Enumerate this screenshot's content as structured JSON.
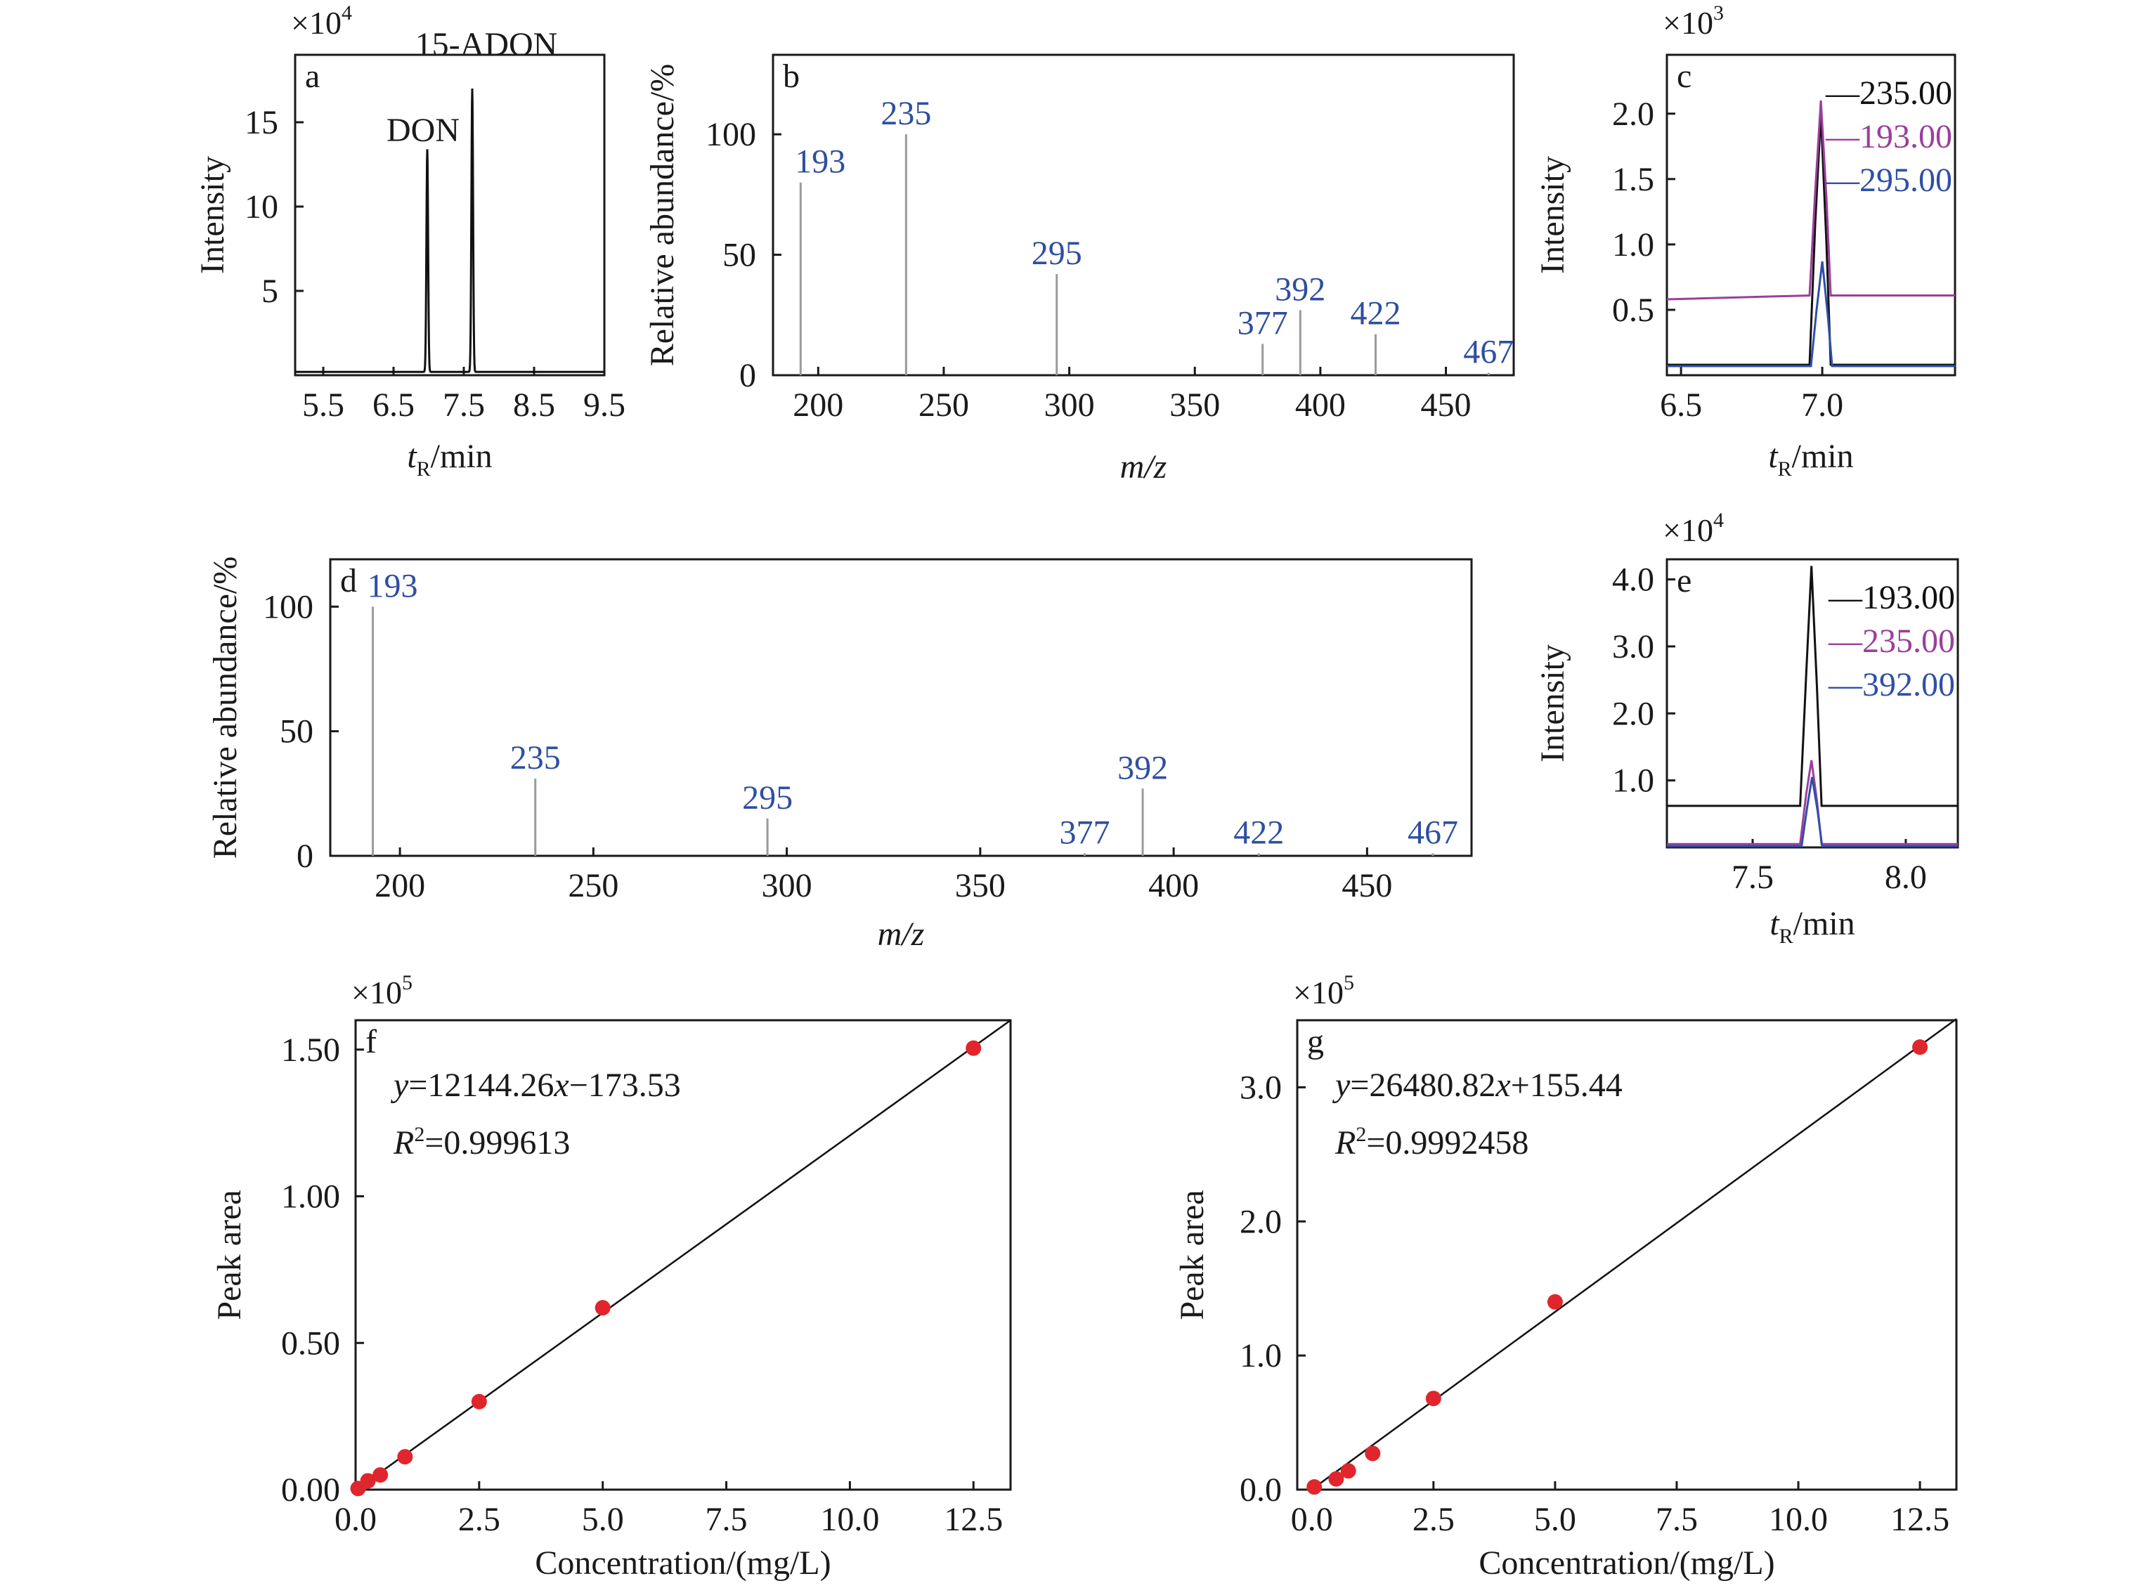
{
  "colors": {
    "axis": "#1a1a1a",
    "bar": "#9a9a9a",
    "label_blue": "#2e4fa0",
    "black_trace": "#111111",
    "magenta_trace": "#9b3f9b",
    "blue_trace": "#2f4fa8",
    "point_red": "#e0262c"
  },
  "chart_data": [
    {
      "id": "a",
      "panel_label": "a",
      "type": "line",
      "xlabel_main": "t",
      "xlabel_sub": "R",
      "xlabel_unit": "/min",
      "ylabel": "Intensity",
      "multiplier_base": "×10",
      "multiplier_exp": "4",
      "xlim": [
        5.1,
        9.5
      ],
      "ylim": [
        0,
        19
      ],
      "xticks": [
        5.5,
        6.5,
        7.5,
        8.5,
        9.5
      ],
      "xtick_labels": [
        "5.5",
        "6.5",
        "7.5",
        "8.5",
        "9.5"
      ],
      "yticks": [
        5,
        10,
        15
      ],
      "ytick_labels": [
        "5",
        "10",
        "15"
      ],
      "baseline": 0.2,
      "peaks": [
        {
          "name": "DON",
          "x": 6.98,
          "height": 13.2,
          "width": 0.025
        },
        {
          "name": "15-ADON",
          "x": 7.62,
          "height": 16.8,
          "width": 0.025
        }
      ],
      "annotations": [
        "DON",
        "15-ADON"
      ]
    },
    {
      "id": "b",
      "panel_label": "b",
      "type": "bar",
      "xlabel": "m/z",
      "ylabel": "Relative abundance/%",
      "xlim": [
        182,
        477
      ],
      "ylim": [
        0,
        133
      ],
      "xticks": [
        200,
        250,
        300,
        350,
        400,
        450
      ],
      "xtick_labels": [
        "200",
        "250",
        "300",
        "350",
        "400",
        "450"
      ],
      "yticks": [
        0,
        50,
        100
      ],
      "ytick_labels": [
        "0",
        "50",
        "100"
      ],
      "x": [
        193,
        235,
        295,
        377,
        392,
        422,
        467
      ],
      "values": [
        80,
        100,
        42,
        13,
        27,
        17,
        1
      ],
      "labels": [
        "193",
        "235",
        "295",
        "377",
        "392",
        "422",
        "467"
      ]
    },
    {
      "id": "c",
      "panel_label": "c",
      "type": "line",
      "xlabel_main": "t",
      "xlabel_sub": "R",
      "xlabel_unit": "/min",
      "ylabel": "Intensity",
      "multiplier_base": "×10",
      "multiplier_exp": "3",
      "xlim": [
        6.45,
        7.47
      ],
      "ylim": [
        0,
        2.45
      ],
      "xticks": [
        6.5,
        7.0
      ],
      "xtick_labels": [
        "6.5",
        "7.0"
      ],
      "yticks": [
        0.5,
        1.0,
        1.5,
        2.0
      ],
      "ytick_labels": [
        "0.5",
        "1.0",
        "1.5",
        "2.0"
      ],
      "series": [
        {
          "name": "—235.00",
          "color": "#111111",
          "x": [
            6.45,
            6.955,
            6.975,
            6.995,
            7.015,
            7.03,
            7.47
          ],
          "y": [
            0.08,
            0.08,
            1.15,
            2.0,
            1.0,
            0.08,
            0.08
          ]
        },
        {
          "name": "—193.00",
          "color": "#9b3f9b",
          "x": [
            6.45,
            6.955,
            6.975,
            6.995,
            7.015,
            7.03,
            7.47
          ],
          "y": [
            0.58,
            0.61,
            1.4,
            2.1,
            1.35,
            0.61,
            0.61
          ]
        },
        {
          "name": "—295.00",
          "color": "#2f4fa8",
          "x": [
            6.45,
            6.96,
            6.98,
            7.0,
            7.02,
            7.035,
            7.47
          ],
          "y": [
            0.07,
            0.07,
            0.5,
            0.87,
            0.45,
            0.07,
            0.07
          ]
        }
      ]
    },
    {
      "id": "d",
      "panel_label": "d",
      "type": "bar",
      "xlabel": "m/z",
      "ylabel": "Relative abundance/%",
      "xlim": [
        182,
        477
      ],
      "ylim": [
        0,
        119
      ],
      "xticks": [
        200,
        250,
        300,
        350,
        400,
        450
      ],
      "xtick_labels": [
        "200",
        "250",
        "300",
        "350",
        "400",
        "450"
      ],
      "yticks": [
        0,
        50,
        100
      ],
      "ytick_labels": [
        "0",
        "50",
        "100"
      ],
      "x": [
        193,
        235,
        295,
        377,
        392,
        422,
        467
      ],
      "values": [
        100,
        31,
        15,
        1,
        27,
        1,
        1
      ],
      "labels": [
        "193",
        "235",
        "295",
        "377",
        "392",
        "422",
        "467"
      ]
    },
    {
      "id": "e",
      "panel_label": "e",
      "type": "line",
      "xlabel_main": "t",
      "xlabel_sub": "R",
      "xlabel_unit": "/min",
      "ylabel": "Intensity",
      "multiplier_base": "×10",
      "multiplier_exp": "4",
      "xlim": [
        7.22,
        8.17
      ],
      "ylim": [
        0,
        4.3
      ],
      "xticks": [
        7.5,
        8.0
      ],
      "xtick_labels": [
        "7.5",
        "8.0"
      ],
      "yticks": [
        1.0,
        2.0,
        3.0,
        4.0
      ],
      "ytick_labels": [
        "1.0",
        "2.0",
        "3.0",
        "4.0"
      ],
      "series": [
        {
          "name": "—193.00",
          "color": "#111111",
          "x": [
            7.22,
            7.655,
            7.675,
            7.692,
            7.71,
            7.725,
            8.17
          ],
          "y": [
            0.62,
            0.62,
            2.6,
            4.2,
            2.4,
            0.62,
            0.62
          ]
        },
        {
          "name": "—235.00",
          "color": "#9b3f9b",
          "x": [
            7.22,
            7.655,
            7.675,
            7.692,
            7.71,
            7.725,
            8.17
          ],
          "y": [
            0.05,
            0.05,
            0.8,
            1.3,
            0.7,
            0.05,
            0.05
          ]
        },
        {
          "name": "—392.00",
          "color": "#2f4fa8",
          "x": [
            7.22,
            7.66,
            7.678,
            7.694,
            7.712,
            7.727,
            8.17
          ],
          "y": [
            0.02,
            0.02,
            0.6,
            1.05,
            0.55,
            0.02,
            0.02
          ]
        }
      ]
    },
    {
      "id": "f",
      "panel_label": "f",
      "type": "scatter",
      "xlabel": "Concentration/(mg/L)",
      "ylabel": "Peak area",
      "multiplier_base": "×10",
      "multiplier_exp": "5",
      "xlim": [
        0,
        13.25
      ],
      "ylim": [
        0,
        1.6
      ],
      "xticks": [
        0.0,
        2.5,
        5.0,
        7.5,
        10.0,
        12.5
      ],
      "xtick_labels": [
        "0.0",
        "2.5",
        "5.0",
        "7.5",
        "10.0",
        "12.5"
      ],
      "yticks": [
        0.0,
        0.5,
        1.0,
        1.5
      ],
      "ytick_labels": [
        "0.00",
        "0.50",
        "1.00",
        "1.50"
      ],
      "x": [
        0.05,
        0.25,
        0.5,
        1.0,
        2.5,
        5.0,
        12.5
      ],
      "y": [
        0.004,
        0.03,
        0.05,
        0.112,
        0.3,
        0.62,
        1.505
      ],
      "fit_line": {
        "x": [
          0,
          13.25
        ],
        "y": [
          -0.0017,
          1.6
        ]
      },
      "equation_y": "y",
      "equation_rest": "=12144.26",
      "equation_x": "x",
      "equation_tail": "−173.53",
      "r2_label": "R",
      "r2_sup": "2",
      "r2_value": "=0.999613"
    },
    {
      "id": "g",
      "panel_label": "g",
      "type": "scatter",
      "xlabel": "Concentration/(mg/L)",
      "ylabel": "Peak area",
      "multiplier_base": "×10",
      "multiplier_exp": "5",
      "xlim": [
        -0.3,
        13.25
      ],
      "ylim": [
        0,
        3.5
      ],
      "xticks": [
        0.0,
        2.5,
        5.0,
        7.5,
        10.0,
        12.5
      ],
      "xtick_labels": [
        "0.0",
        "2.5",
        "5.0",
        "7.5",
        "10.0",
        "12.5"
      ],
      "yticks": [
        0.0,
        1.0,
        2.0,
        3.0
      ],
      "ytick_labels": [
        "0.0",
        "1.0",
        "2.0",
        "3.0"
      ],
      "x": [
        0.05,
        0.5,
        0.75,
        1.25,
        2.5,
        5.0,
        12.5
      ],
      "y": [
        0.02,
        0.08,
        0.14,
        0.27,
        0.68,
        1.4,
        3.3
      ],
      "fit_line": {
        "x": [
          0,
          13.25
        ],
        "y": [
          0.0016,
          3.51
        ]
      },
      "equation_y": "y",
      "equation_rest": "=26480.82",
      "equation_x": "x",
      "equation_tail": "+155.44",
      "r2_label": "R",
      "r2_sup": "2",
      "r2_value": "=0.9992458"
    }
  ]
}
